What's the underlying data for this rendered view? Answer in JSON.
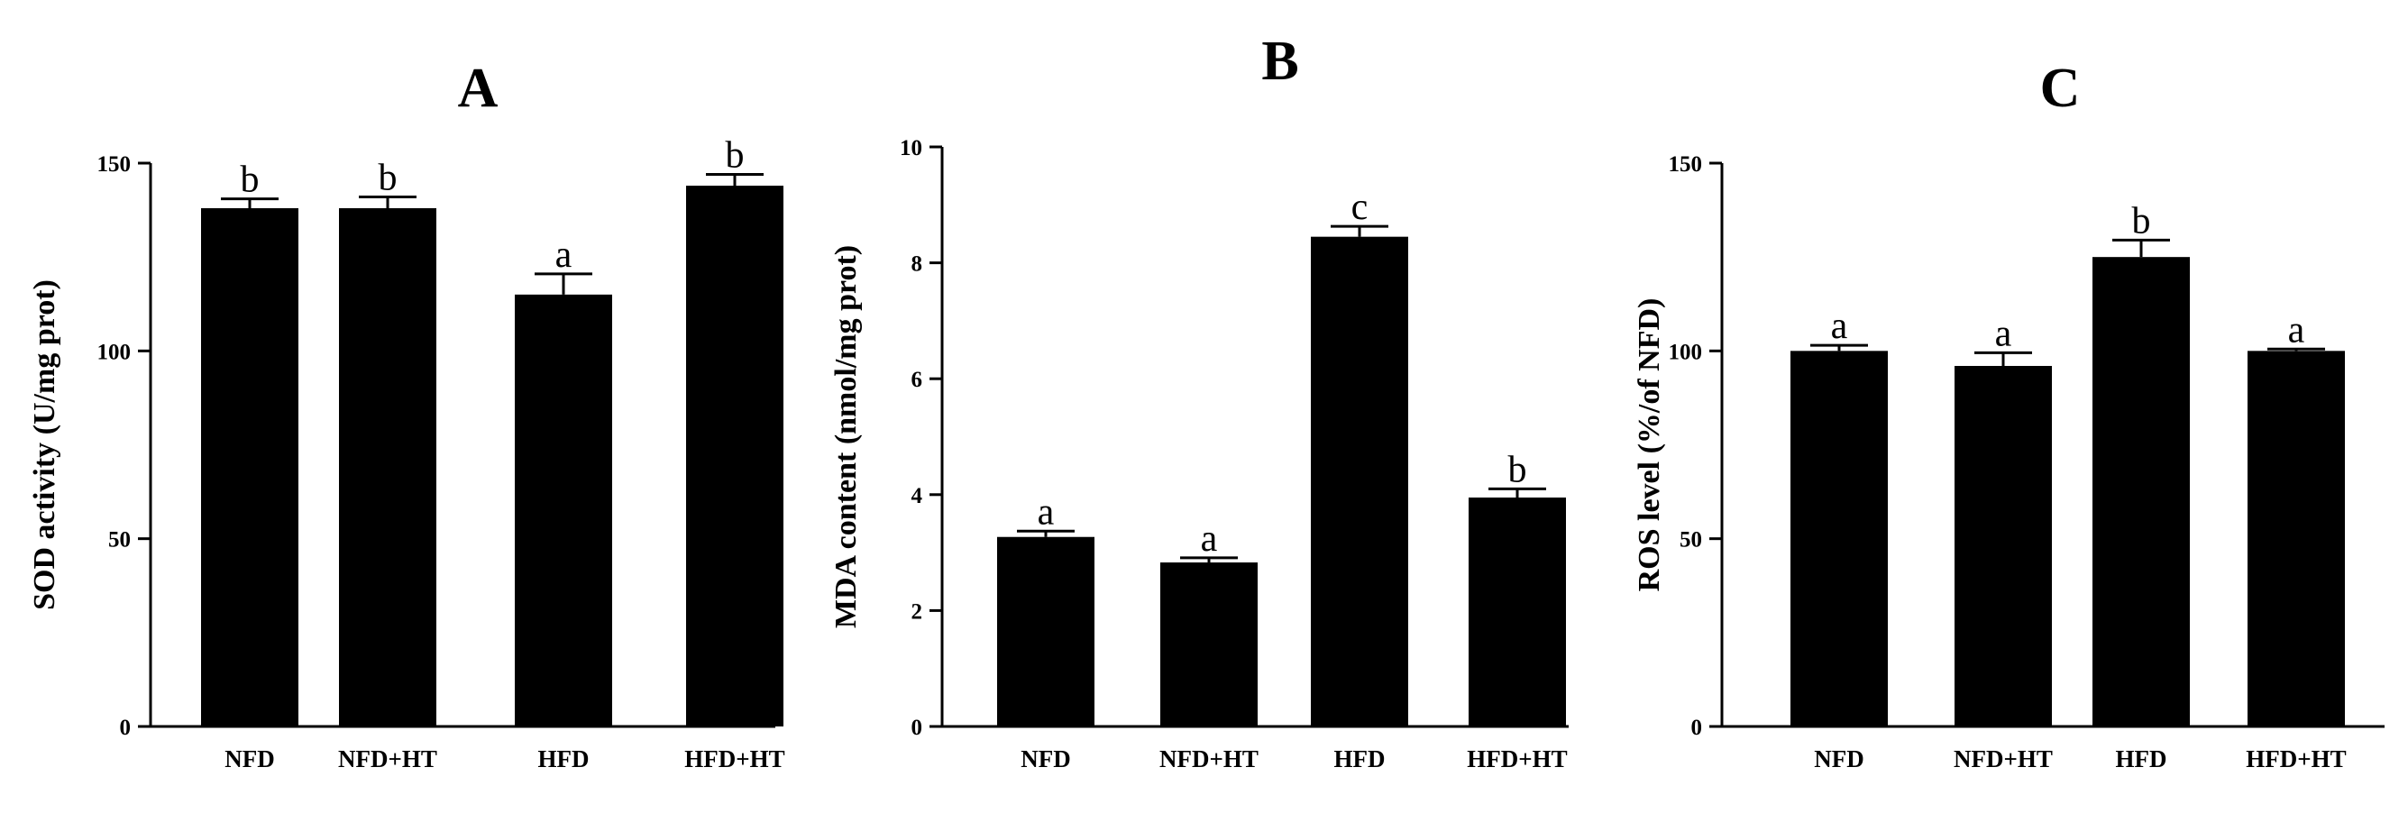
{
  "chart_data": [
    {
      "type": "bar",
      "title": "A",
      "xlabel": "",
      "ylabel": "SOD activity  (U/mg prot)",
      "categories": [
        "NFD",
        "NFD+HT",
        "HFD",
        "HFD+HT"
      ],
      "values": [
        138,
        138,
        115,
        144
      ],
      "errors": [
        2.5,
        3,
        5.5,
        3
      ],
      "letters": [
        "b",
        "b",
        "a",
        "b"
      ],
      "ylim": [
        0,
        150
      ],
      "yticks": [
        0,
        50,
        100,
        150
      ],
      "grid": false,
      "bar_color": "#000000"
    },
    {
      "type": "bar",
      "title": "B",
      "xlabel": "",
      "ylabel": "MDA content (nmol/mg prot)",
      "categories": [
        "NFD",
        "NFD+HT",
        "HFD",
        "HFD+HT"
      ],
      "values": [
        3.27,
        2.83,
        8.45,
        3.95
      ],
      "errors": [
        0.1,
        0.08,
        0.18,
        0.15
      ],
      "letters": [
        "a",
        "a",
        "c",
        "b"
      ],
      "ylim": [
        0,
        10
      ],
      "yticks": [
        0,
        2,
        4,
        6,
        8,
        10
      ],
      "grid": false,
      "bar_color": "#000000"
    },
    {
      "type": "bar",
      "title": "C",
      "xlabel": "",
      "ylabel": "ROS level (%/of NFD)",
      "categories": [
        "NFD",
        "NFD+HT",
        "HFD",
        "HFD+HT"
      ],
      "values": [
        100,
        96,
        125,
        100
      ],
      "errors": [
        1.5,
        3.5,
        4.5,
        0.5
      ],
      "letters": [
        "a",
        "a",
        "b",
        "a"
      ],
      "ylim": [
        0,
        150
      ],
      "yticks": [
        0,
        50,
        100,
        150
      ],
      "grid": false,
      "bar_color": "#000000"
    }
  ]
}
